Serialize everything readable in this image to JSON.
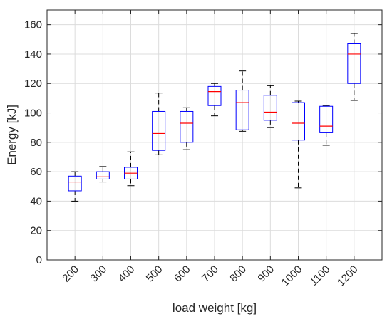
{
  "chart_data": {
    "type": "box",
    "title": "",
    "xlabel": "load weight [kg]",
    "ylabel": "Energy [kJ]",
    "ylim": [
      0,
      170
    ],
    "yticks": [
      0,
      20,
      40,
      60,
      80,
      100,
      120,
      140,
      160
    ],
    "grid": true,
    "colors": {
      "box": "#0000ff",
      "median": "#ff0000",
      "whisker": "#000000",
      "grid": "#dcdcdc",
      "axis": "#262626"
    },
    "categories": [
      "200",
      "300",
      "400",
      "500",
      "600",
      "700",
      "800",
      "900",
      "1000",
      "1100",
      "1200"
    ],
    "boxes": [
      {
        "category": "200",
        "whisker_low": 40,
        "q1": 47,
        "median": 53,
        "q3": 57,
        "whisker_high": 60
      },
      {
        "category": "300",
        "whisker_low": 53,
        "q1": 55,
        "median": 56.5,
        "q3": 60,
        "whisker_high": 63.5
      },
      {
        "category": "400",
        "whisker_low": 50.5,
        "q1": 55,
        "median": 59,
        "q3": 63,
        "whisker_high": 73.5
      },
      {
        "category": "500",
        "whisker_low": 71.5,
        "q1": 74.5,
        "median": 86,
        "q3": 101,
        "whisker_high": 113.5
      },
      {
        "category": "600",
        "whisker_low": 75,
        "q1": 80,
        "median": 93,
        "q3": 101,
        "whisker_high": 103.5
      },
      {
        "category": "700",
        "whisker_low": 98,
        "q1": 105,
        "median": 114.5,
        "q3": 118,
        "whisker_high": 120
      },
      {
        "category": "800",
        "whisker_low": 87.5,
        "q1": 88.5,
        "median": 107,
        "q3": 115.5,
        "whisker_high": 128.5
      },
      {
        "category": "900",
        "whisker_low": 90,
        "q1": 95,
        "median": 100.5,
        "q3": 112,
        "whisker_high": 118.5
      },
      {
        "category": "1000",
        "whisker_low": 49,
        "q1": 81.5,
        "median": 93,
        "q3": 107,
        "whisker_high": 108
      },
      {
        "category": "1100",
        "whisker_low": 78,
        "q1": 86.5,
        "median": 91,
        "q3": 104.5,
        "whisker_high": 105
      },
      {
        "category": "1200",
        "whisker_low": 108.5,
        "q1": 120,
        "median": 140,
        "q3": 147,
        "whisker_high": 154
      }
    ]
  }
}
